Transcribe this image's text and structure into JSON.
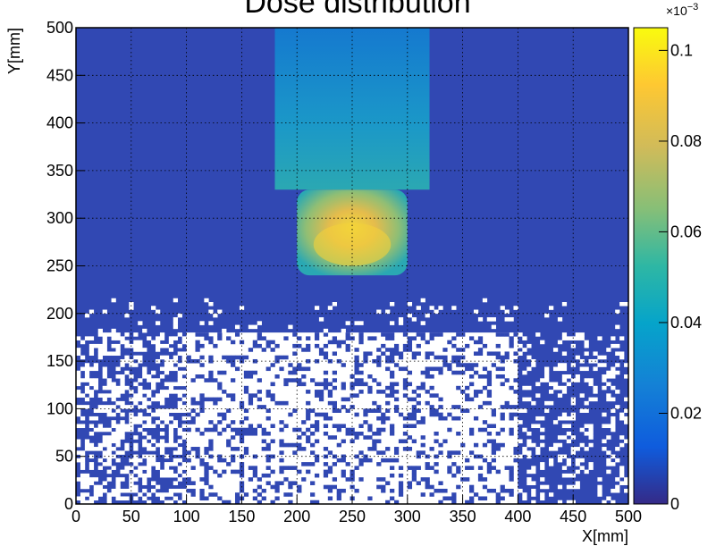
{
  "chart_data": {
    "type": "heatmap",
    "title": "Dose distribution",
    "xlabel": "X[mm]",
    "ylabel": "Y[mm]",
    "xlim": [
      0,
      500
    ],
    "ylim": [
      0,
      500
    ],
    "x_ticks": [
      "0",
      "50",
      "100",
      "150",
      "200",
      "250",
      "300",
      "350",
      "400",
      "450",
      "500"
    ],
    "y_ticks": [
      "0",
      "50",
      "100",
      "150",
      "200",
      "250",
      "300",
      "350",
      "400",
      "450",
      "500"
    ],
    "grid": true,
    "colorbar": {
      "range": [
        0,
        0.105
      ],
      "exponent_label": "×10",
      "exponent_power": "−3",
      "ticks": [
        "0",
        "0.02",
        "0.04",
        "0.06",
        "0.08",
        "0.1"
      ],
      "tick_values": [
        0,
        0.02,
        0.04,
        0.06,
        0.07999,
        0.1
      ],
      "palette": [
        "#352a87",
        "#0f5cdd",
        "#1481d6",
        "#06a4ca",
        "#2eb7a4",
        "#87bf77",
        "#d1bb59",
        "#fec832",
        "#f9fb0e"
      ]
    },
    "regions": [
      {
        "name": "beam-upper",
        "x": [
          180,
          320
        ],
        "y": [
          330,
          500
        ],
        "value": 0.035
      },
      {
        "name": "beam-core",
        "x": [
          200,
          300
        ],
        "y": [
          240,
          330
        ],
        "value": 0.06
      },
      {
        "name": "hotspot",
        "x": [
          215,
          285
        ],
        "y": [
          250,
          295
        ],
        "value": 0.09
      },
      {
        "name": "zero-dose-region",
        "x": [
          100,
          400
        ],
        "y": [
          0,
          180
        ],
        "value": null
      }
    ]
  }
}
